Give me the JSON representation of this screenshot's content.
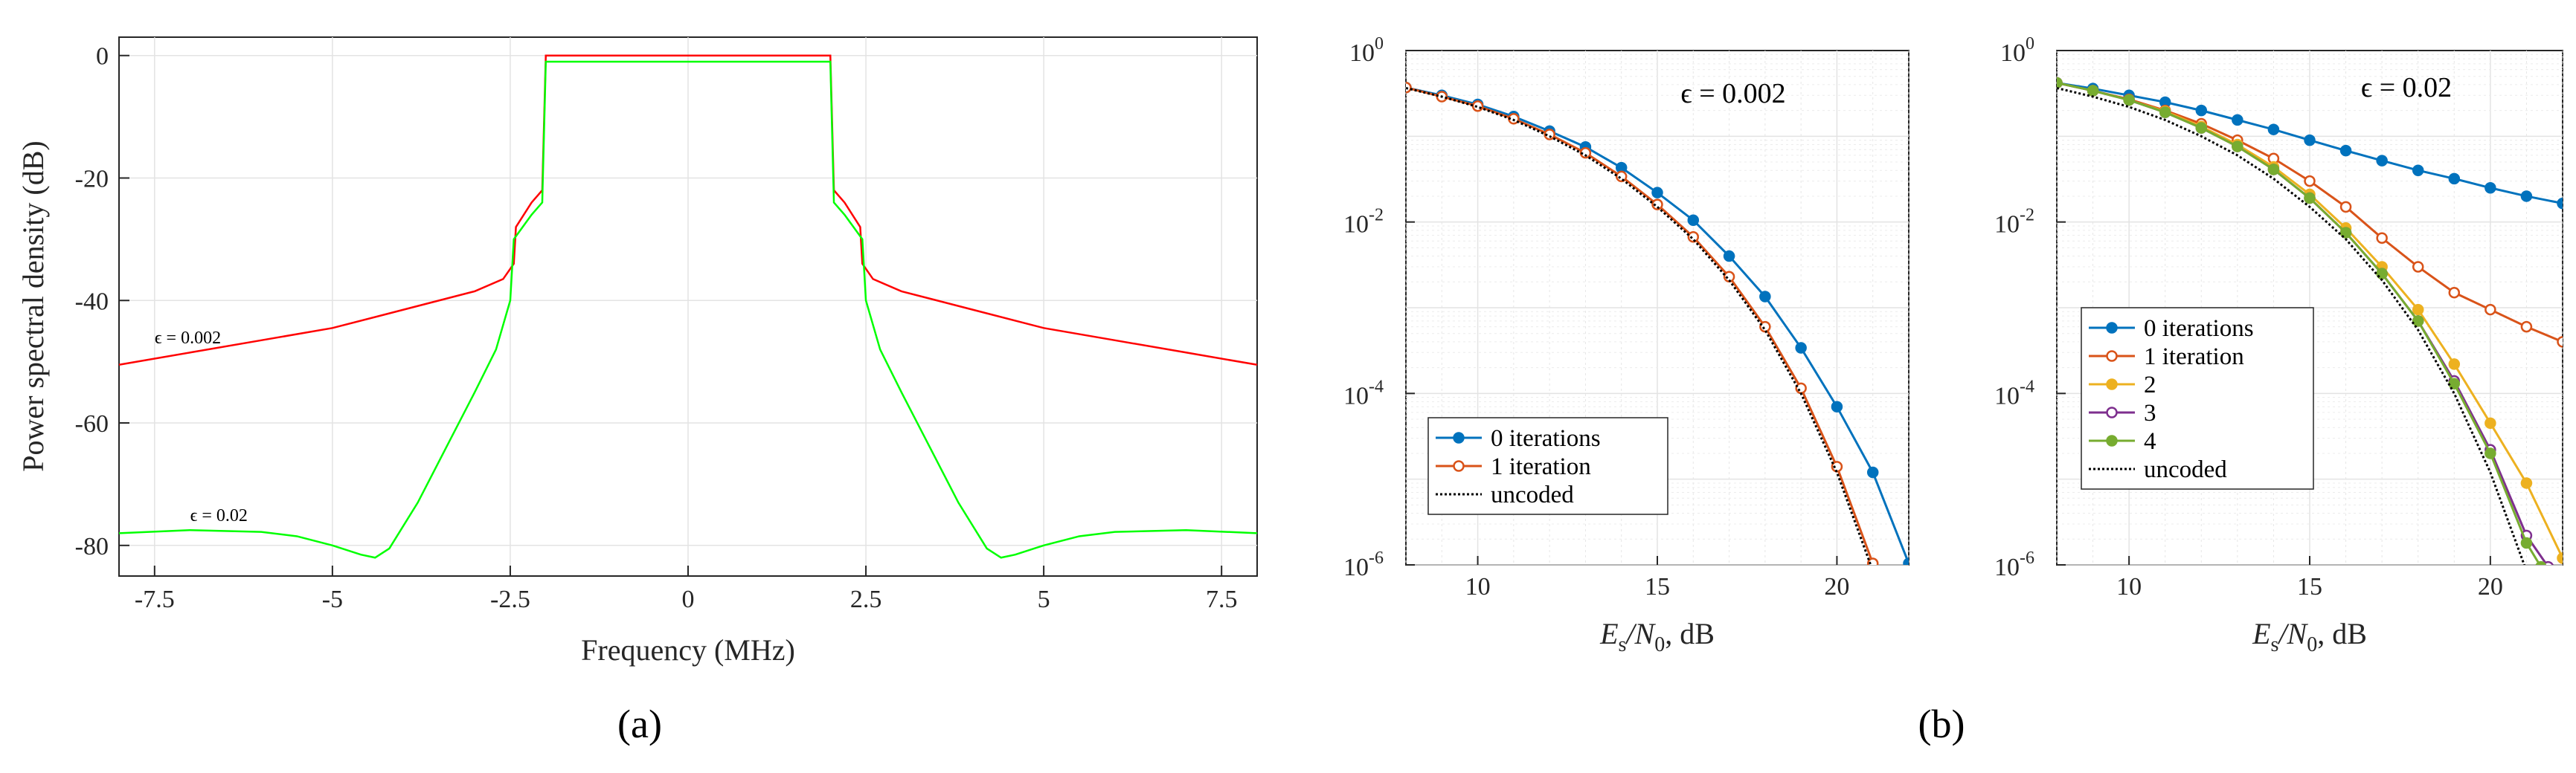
{
  "colors": {
    "red": "#ff0000",
    "green": "#00ff00",
    "blue": "#0072bd",
    "orange": "#d95319",
    "yellow": "#edb120",
    "purple": "#7e2f8e",
    "olive": "#77ac30",
    "black": "#000000"
  },
  "panel_labels": {
    "a": "(a)",
    "b": "(b)"
  },
  "chart_data": [
    {
      "id": "a",
      "type": "line",
      "title": "",
      "xlabel": "Frequency (MHz)",
      "ylabel": "Power spectral density (dB)",
      "xlim": [
        -8,
        8
      ],
      "ylim": [
        -85,
        3
      ],
      "xticks": [
        -7.5,
        -5,
        -2.5,
        0,
        2.5,
        5,
        7.5
      ],
      "xtick_labels": [
        "-7.5",
        "-5",
        "-2.5",
        "0",
        "2.5",
        "5",
        "7.5"
      ],
      "yticks": [
        0,
        -20,
        -40,
        -60,
        -80
      ],
      "ytick_labels": [
        "0",
        "-20",
        "-40",
        "-60",
        "-80"
      ],
      "grid": true,
      "annotations": [
        {
          "text": "ϵ = 0.002",
          "x": -7.5,
          "y": -47
        },
        {
          "text": "ϵ = 0.02",
          "x": -7.0,
          "y": -76
        }
      ],
      "series": [
        {
          "name": "ϵ = 0.002",
          "color": "#ff0000",
          "x": [
            -8,
            -7,
            -6,
            -5,
            -4,
            -3.5,
            -3,
            -2.6,
            -2.45,
            -2.42,
            -2.2,
            -2.05,
            -2.0,
            2.0,
            2.05,
            2.2,
            2.42,
            2.45,
            2.6,
            3,
            3.5,
            4,
            5,
            6,
            7,
            8
          ],
          "y": [
            -50.5,
            -48.5,
            -46.5,
            -44.5,
            -41.5,
            -40,
            -38.5,
            -36.5,
            -34,
            -28,
            -24,
            -22,
            0,
            0,
            -22,
            -24,
            -28,
            -34,
            -36.5,
            -38.5,
            -40,
            -41.5,
            -44.5,
            -46.5,
            -48.5,
            -50.5
          ]
        },
        {
          "name": "ϵ = 0.02",
          "color": "#00ff00",
          "x": [
            -8,
            -7,
            -6,
            -5.5,
            -5,
            -4.6,
            -4.4,
            -4.2,
            -3.8,
            -3.4,
            -3.0,
            -2.7,
            -2.5,
            -2.45,
            -2.2,
            -2.05,
            -2.0,
            2.0,
            2.05,
            2.2,
            2.45,
            2.5,
            2.7,
            3.0,
            3.4,
            3.8,
            4.2,
            4.4,
            4.6,
            5,
            5.5,
            6,
            7,
            8
          ],
          "y": [
            -78,
            -77.5,
            -77.8,
            -78.5,
            -80,
            -81.5,
            -82,
            -80.5,
            -73,
            -64,
            -55,
            -48,
            -40,
            -30,
            -26,
            -24,
            -1,
            -1,
            -24,
            -26,
            -30,
            -40,
            -48,
            -55,
            -64,
            -73,
            -80.5,
            -82,
            -81.5,
            -80,
            -78.5,
            -77.8,
            -77.5,
            -78
          ]
        }
      ]
    },
    {
      "id": "b-left",
      "type": "line",
      "title": "ϵ = 0.002",
      "xlabel_main": "E",
      "xlabel_sub1": "s",
      "xlabel_mid": "/N",
      "xlabel_sub2": "0",
      "xlabel_tail": ", dB",
      "yscale": "log",
      "xlim": [
        8,
        22
      ],
      "ylim_exp": [
        -6,
        0
      ],
      "xticks": [
        10,
        15,
        20
      ],
      "xtick_labels": [
        "10",
        "15",
        "20"
      ],
      "ytick_exps": [
        "0",
        "-2",
        "-4",
        "-6"
      ],
      "ytick_base": "10",
      "grid": true,
      "legend": "bottom-left",
      "series": [
        {
          "name": "0 iterations",
          "color": "#0072bd",
          "marker": "filled-circle",
          "x": [
            8,
            9,
            10,
            11,
            12,
            13,
            14,
            15,
            16,
            17,
            18,
            19,
            20,
            21,
            22
          ],
          "y": [
            0.37,
            0.3,
            0.235,
            0.17,
            0.115,
            0.075,
            0.043,
            0.022,
            0.0105,
            0.004,
            0.00135,
            0.00034,
            7e-05,
            1.2e-05,
            1.04e-06
          ]
        },
        {
          "name": "1 iteration",
          "color": "#d95319",
          "marker": "open-circle",
          "x": [
            8,
            9,
            10,
            11,
            12,
            13,
            14,
            15,
            16,
            17,
            18,
            19,
            20,
            21
          ],
          "y": [
            0.37,
            0.29,
            0.225,
            0.16,
            0.105,
            0.064,
            0.034,
            0.016,
            0.0067,
            0.0023,
            0.0006,
            0.000115,
            1.4e-05,
            1.04e-06
          ]
        },
        {
          "name": "uncoded",
          "color": "#000000",
          "marker": "none",
          "dash": "dotted",
          "x": [
            8,
            9,
            10,
            11,
            12,
            13,
            14,
            15,
            16,
            17,
            18,
            19,
            20,
            21
          ],
          "y": [
            0.365,
            0.29,
            0.22,
            0.155,
            0.1,
            0.06,
            0.032,
            0.015,
            0.0063,
            0.0021,
            0.00055,
            0.0001,
            1.2e-05,
            8.5e-07
          ]
        }
      ]
    },
    {
      "id": "b-right",
      "type": "line",
      "title": "ϵ = 0.02",
      "xlabel_main": "E",
      "xlabel_sub1": "s",
      "xlabel_mid": "/N",
      "xlabel_sub2": "0",
      "xlabel_tail": ", dB",
      "yscale": "log",
      "xlim": [
        8,
        22
      ],
      "ylim_exp": [
        -6,
        0
      ],
      "xticks": [
        10,
        15,
        20
      ],
      "xtick_labels": [
        "10",
        "15",
        "20"
      ],
      "ytick_exps": [
        "0",
        "-2",
        "-4",
        "-6"
      ],
      "ytick_base": "10",
      "grid": true,
      "legend": "bottom-left",
      "series": [
        {
          "name": "0 iterations",
          "color": "#0072bd",
          "marker": "filled-circle",
          "x": [
            8,
            9,
            10,
            11,
            12,
            13,
            14,
            15,
            16,
            17,
            18,
            19,
            20,
            21,
            22
          ],
          "y": [
            0.42,
            0.36,
            0.3,
            0.25,
            0.2,
            0.155,
            0.12,
            0.09,
            0.068,
            0.052,
            0.04,
            0.032,
            0.025,
            0.02,
            0.0165
          ]
        },
        {
          "name": "1 iteration",
          "color": "#d95319",
          "marker": "open-circle",
          "x": [
            8,
            9,
            10,
            11,
            12,
            13,
            14,
            15,
            16,
            17,
            18,
            19,
            20,
            21,
            22
          ],
          "y": [
            0.42,
            0.34,
            0.27,
            0.2,
            0.14,
            0.09,
            0.055,
            0.03,
            0.015,
            0.0065,
            0.003,
            0.0015,
            0.00095,
            0.0006,
            0.0004
          ]
        },
        {
          "name": "2",
          "color": "#edb120",
          "marker": "filled-circle",
          "x": [
            8,
            9,
            10,
            11,
            12,
            13,
            14,
            15,
            16,
            17,
            18,
            19,
            20,
            21,
            22
          ],
          "y": [
            0.42,
            0.34,
            0.265,
            0.195,
            0.13,
            0.08,
            0.044,
            0.021,
            0.0085,
            0.003,
            0.00095,
            0.00022,
            4.5e-05,
            9e-06,
            1.2e-06
          ]
        },
        {
          "name": "3",
          "color": "#7e2f8e",
          "marker": "open-circle",
          "x": [
            8,
            9,
            10,
            11,
            12,
            13,
            14,
            15,
            16,
            17,
            18,
            19,
            20,
            21,
            21.6
          ],
          "y": [
            0.42,
            0.34,
            0.265,
            0.19,
            0.125,
            0.076,
            0.041,
            0.019,
            0.0075,
            0.0025,
            0.0007,
            0.00014,
            2.2e-05,
            2.2e-06,
            9.5e-07
          ]
        },
        {
          "name": "4",
          "color": "#77ac30",
          "marker": "filled-circle",
          "x": [
            8,
            9,
            10,
            11,
            12,
            13,
            14,
            15,
            16,
            17,
            18,
            19,
            20,
            21,
            21.4
          ],
          "y": [
            0.42,
            0.34,
            0.265,
            0.19,
            0.125,
            0.076,
            0.041,
            0.019,
            0.0075,
            0.0025,
            0.0007,
            0.00013,
            2e-05,
            1.8e-06,
            9.5e-07
          ]
        },
        {
          "name": "uncoded",
          "color": "#000000",
          "marker": "none",
          "dash": "dotted",
          "x": [
            8,
            9,
            10,
            11,
            12,
            13,
            14,
            15,
            16,
            17,
            18,
            19,
            20,
            21
          ],
          "y": [
            0.365,
            0.29,
            0.22,
            0.155,
            0.1,
            0.06,
            0.032,
            0.015,
            0.0063,
            0.0021,
            0.00055,
            0.0001,
            1.2e-05,
            8.5e-07
          ]
        }
      ]
    }
  ]
}
